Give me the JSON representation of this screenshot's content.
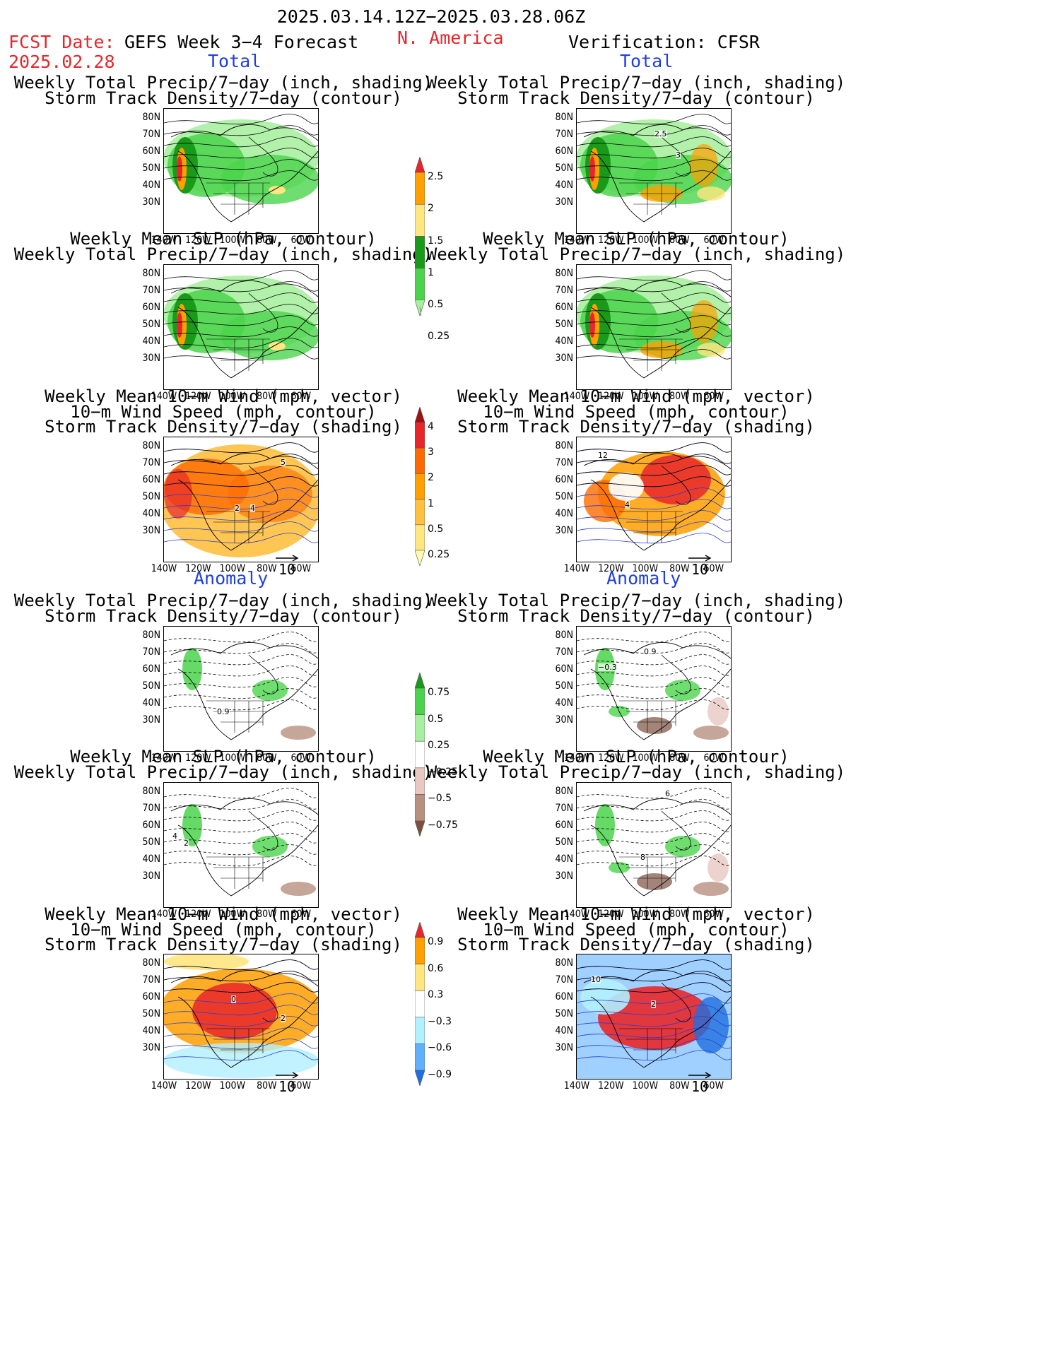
{
  "header": {
    "date_range": "2025.03.14.12Z−2025.03.28.06Z",
    "region": "N. America",
    "fcst_label": "FCST Date:",
    "fcst_date": "2025.02.28",
    "forecast_title": "GEFS Week 3−4 Forecast",
    "verification": "Verification: CFSR",
    "left_section_total": "Total",
    "right_section_total": "Total",
    "left_section_anomaly": "Anomaly",
    "right_section_anomaly": "Anomaly"
  },
  "titles": {
    "precip_storm_1": "Weekly Total Precip/7−day (inch, shading)",
    "precip_storm_2": "Storm Track Density/7−day (contour)",
    "slp_1": "Weekly Mean SLP (hPa, contour)",
    "slp_2": "Weekly Total Precip/7−day (inch, shading)",
    "wind_1": "Weekly Mean 10−m Wind (mph, vector)",
    "wind_2": "10−m Wind Speed (mph, contour)",
    "wind_3": "Storm Track Density/7−day (shading)"
  },
  "axes": {
    "lat": [
      "80N",
      "70N",
      "60N",
      "50N",
      "40N",
      "30N"
    ],
    "lon": [
      "140W",
      "120W",
      "100W",
      "80W",
      "60W"
    ]
  },
  "vector_ref": "10",
  "colorbars": {
    "precip_total": {
      "labels": [
        "2.5",
        "2",
        "1.5",
        "1",
        "0.5",
        "0.25"
      ],
      "colors": [
        "#e8262a",
        "#ff9f00",
        "#ffe680",
        "#1a9a1a",
        "#4bd44b",
        "#a8f0a0"
      ]
    },
    "storm_total": {
      "labels": [
        "4",
        "3",
        "2",
        "1",
        "0.5",
        "0.25"
      ],
      "colors": [
        "#a01010",
        "#e8262a",
        "#ff6a00",
        "#ff9f00",
        "#ffc040",
        "#ffe680",
        "#fffbb0"
      ]
    },
    "precip_anom": {
      "labels": [
        "0.75",
        "0.5",
        "0.25",
        "−0.25",
        "−0.5",
        "−0.75"
      ],
      "colors": [
        "#1a9a1a",
        "#4bd44b",
        "#a8f0a0",
        "#ffffff",
        "#e8c8c0",
        "#b89080",
        "#7a5040"
      ]
    },
    "storm_anom": {
      "labels": [
        "0.9",
        "0.6",
        "0.3",
        "−0.3",
        "−0.6",
        "−0.9"
      ],
      "colors": [
        "#e8262a",
        "#ff9f00",
        "#ffe680",
        "#ffffff",
        "#b0f0ff",
        "#60b0ff",
        "#1f6fe0"
      ]
    }
  },
  "map_annotations": {
    "r1_contour": "2.5",
    "r1_contour2": "3",
    "w1_label1": "2",
    "w1_label2": "4",
    "w1_label3": "5",
    "w2_label1": "12",
    "w2_label2": "4",
    "a1_label": "0.9",
    "a2_label1": "0.9",
    "a2_label2": "−0.3",
    "s1_label1": "4",
    "s1_label2": "2",
    "s2_label1": "6",
    "s2_label2": "8",
    "w3_label1": "0",
    "w3_label2": "2",
    "w4_label1": "10",
    "w4_label2": "2"
  }
}
